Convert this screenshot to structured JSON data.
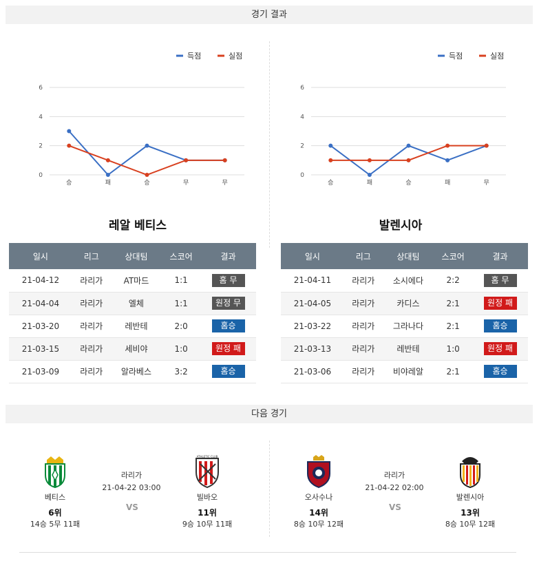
{
  "sections": {
    "results_title": "경기 결과",
    "next_title": "다음 경기"
  },
  "legend": {
    "scored": "득점",
    "conceded": "실점"
  },
  "colors": {
    "scored": "#3a6fc4",
    "conceded": "#d8401f",
    "header": "#6b7a87"
  },
  "chart_data": [
    {
      "type": "line",
      "categories": [
        "승",
        "패",
        "승",
        "무",
        "무"
      ],
      "ylim": [
        0,
        6
      ],
      "yticks": [
        "0",
        "2",
        "4",
        "6"
      ],
      "series": [
        {
          "name": "득점",
          "values": [
            3,
            0,
            2,
            1,
            1
          ]
        },
        {
          "name": "실점",
          "values": [
            2,
            1,
            0,
            1,
            1
          ]
        }
      ]
    },
    {
      "type": "line",
      "categories": [
        "승",
        "패",
        "승",
        "패",
        "무"
      ],
      "ylim": [
        0,
        6
      ],
      "yticks": [
        "0",
        "2",
        "4",
        "6"
      ],
      "series": [
        {
          "name": "득점",
          "values": [
            2,
            0,
            2,
            1,
            2
          ]
        },
        {
          "name": "실점",
          "values": [
            1,
            1,
            1,
            2,
            2
          ]
        }
      ]
    }
  ],
  "teams": [
    {
      "name": "레알 베티스",
      "headers": [
        "일시",
        "리그",
        "상대팀",
        "스코어",
        "결과"
      ],
      "rows": [
        {
          "date": "21-04-12",
          "league": "라리가",
          "opponent": "AT마드",
          "score": "1:1",
          "result": "홈 무",
          "color": "grey"
        },
        {
          "date": "21-04-04",
          "league": "라리가",
          "opponent": "엘체",
          "score": "1:1",
          "result": "원정 무",
          "color": "grey"
        },
        {
          "date": "21-03-20",
          "league": "라리가",
          "opponent": "레반테",
          "score": "2:0",
          "result": "홈승",
          "color": "blue"
        },
        {
          "date": "21-03-15",
          "league": "라리가",
          "opponent": "세비야",
          "score": "1:0",
          "result": "원정 패",
          "color": "red"
        },
        {
          "date": "21-03-09",
          "league": "라리가",
          "opponent": "알라베스",
          "score": "3:2",
          "result": "홈승",
          "color": "blue"
        }
      ]
    },
    {
      "name": "발렌시아",
      "headers": [
        "일시",
        "리그",
        "상대팀",
        "스코어",
        "결과"
      ],
      "rows": [
        {
          "date": "21-04-11",
          "league": "라리가",
          "opponent": "소시에다",
          "score": "2:2",
          "result": "홈 무",
          "color": "grey"
        },
        {
          "date": "21-04-05",
          "league": "라리가",
          "opponent": "카디스",
          "score": "2:1",
          "result": "원정 패",
          "color": "red"
        },
        {
          "date": "21-03-22",
          "league": "라리가",
          "opponent": "그라나다",
          "score": "2:1",
          "result": "홈승",
          "color": "blue"
        },
        {
          "date": "21-03-13",
          "league": "라리가",
          "opponent": "레반테",
          "score": "1:0",
          "result": "원정 패",
          "color": "red"
        },
        {
          "date": "21-03-06",
          "league": "라리가",
          "opponent": "비야레알",
          "score": "2:1",
          "result": "홈승",
          "color": "blue"
        }
      ]
    }
  ],
  "next_matches": [
    {
      "home": {
        "name": "베티스",
        "rank": "6위",
        "record": "14승 5무 11패",
        "logo": "betis-crest-icon"
      },
      "league": "라리가",
      "datetime": "21-04-22 03:00",
      "vs": "VS",
      "away": {
        "name": "빌바오",
        "rank": "11위",
        "record": "9승 10무 11패",
        "logo": "athletic-club-crest-icon"
      }
    },
    {
      "home": {
        "name": "오사수나",
        "rank": "14위",
        "record": "8승 10무 12패",
        "logo": "osasuna-crest-icon"
      },
      "league": "라리가",
      "datetime": "21-04-22 02:00",
      "vs": "VS",
      "away": {
        "name": "발렌시아",
        "rank": "13위",
        "record": "8승 10무 12패",
        "logo": "valencia-crest-icon"
      }
    }
  ]
}
